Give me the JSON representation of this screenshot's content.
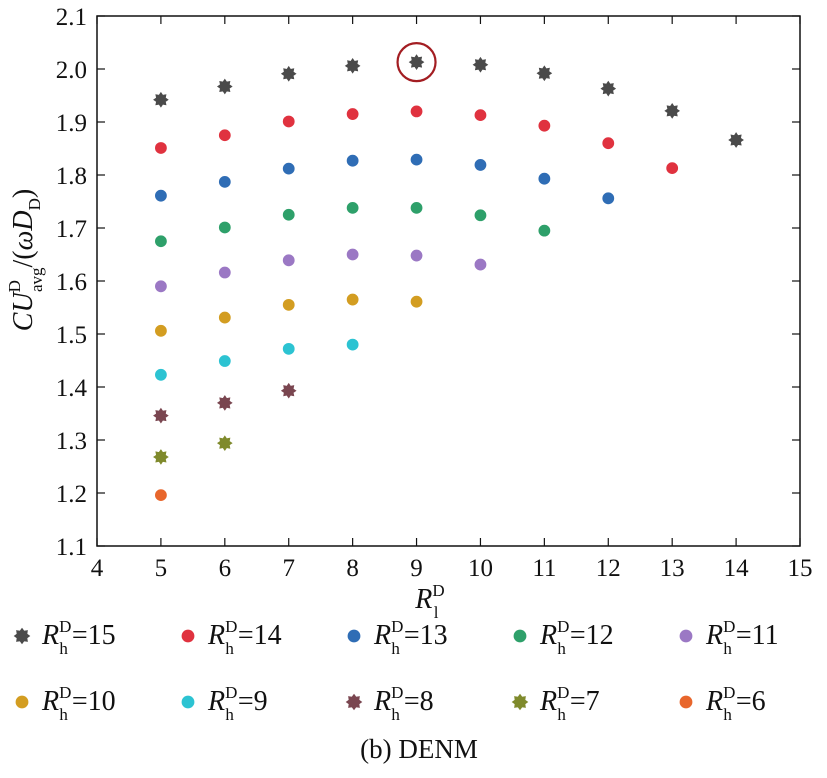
{
  "chart_data": {
    "type": "scatter",
    "title": "",
    "caption": "(b) DENM",
    "xlabel": {
      "symbol": "R",
      "sup": "D",
      "sub": "l"
    },
    "ylabel": {
      "prefix": "CU",
      "sup": "D",
      "sub": "avg",
      "suffix_open": "/(",
      "omega": "ω",
      "d": "D",
      "d_sub": "D",
      "suffix_close": ")"
    },
    "xlim": [
      4,
      15
    ],
    "ylim": [
      1.1,
      2.1
    ],
    "xticks": [
      "4",
      "5",
      "6",
      "7",
      "8",
      "9",
      "10",
      "11",
      "12",
      "13",
      "14",
      "15"
    ],
    "yticks": [
      "1.1",
      "1.2",
      "1.3",
      "1.4",
      "1.5",
      "1.6",
      "1.7",
      "1.8",
      "1.9",
      "2.0",
      "2.1"
    ],
    "grid": false,
    "highlight": {
      "x": 9,
      "y": 2.013,
      "color": "#a31d22"
    },
    "series": [
      {
        "name": "=15",
        "rh": "15",
        "color": "#4a4a4a",
        "marker": "star",
        "points": [
          [
            5,
            1.942
          ],
          [
            6,
            1.967
          ],
          [
            7,
            1.991
          ],
          [
            8,
            2.006
          ],
          [
            9,
            2.013
          ],
          [
            10,
            2.008
          ],
          [
            11,
            1.992
          ],
          [
            12,
            1.963
          ],
          [
            13,
            1.921
          ],
          [
            14,
            1.866
          ]
        ]
      },
      {
        "name": "=14",
        "rh": "14",
        "color": "#e0323f",
        "marker": "circle",
        "points": [
          [
            5,
            1.851
          ],
          [
            6,
            1.875
          ],
          [
            7,
            1.901
          ],
          [
            8,
            1.915
          ],
          [
            9,
            1.92
          ],
          [
            10,
            1.913
          ],
          [
            11,
            1.893
          ],
          [
            12,
            1.86
          ],
          [
            13,
            1.813
          ]
        ]
      },
      {
        "name": "=13",
        "rh": "13",
        "color": "#2f6db5",
        "marker": "circle",
        "points": [
          [
            5,
            1.761
          ],
          [
            6,
            1.787
          ],
          [
            7,
            1.812
          ],
          [
            8,
            1.827
          ],
          [
            9,
            1.829
          ],
          [
            10,
            1.819
          ],
          [
            11,
            1.793
          ],
          [
            12,
            1.756
          ]
        ]
      },
      {
        "name": "=12",
        "rh": "12",
        "color": "#2ea06a",
        "marker": "circle",
        "points": [
          [
            5,
            1.675
          ],
          [
            6,
            1.701
          ],
          [
            7,
            1.725
          ],
          [
            8,
            1.738
          ],
          [
            9,
            1.738
          ],
          [
            10,
            1.724
          ],
          [
            11,
            1.695
          ]
        ]
      },
      {
        "name": "=11",
        "rh": "11",
        "color": "#9b78c4",
        "marker": "circle",
        "points": [
          [
            5,
            1.59
          ],
          [
            6,
            1.616
          ],
          [
            7,
            1.639
          ],
          [
            8,
            1.65
          ],
          [
            9,
            1.648
          ],
          [
            10,
            1.631
          ]
        ]
      },
      {
        "name": "=10",
        "rh": "10",
        "color": "#d39d21",
        "marker": "circle",
        "points": [
          [
            5,
            1.506
          ],
          [
            6,
            1.531
          ],
          [
            7,
            1.555
          ],
          [
            8,
            1.565
          ],
          [
            9,
            1.561
          ]
        ]
      },
      {
        "name": "=9",
        "rh": "9",
        "color": "#2cc3d2",
        "marker": "circle",
        "points": [
          [
            5,
            1.423
          ],
          [
            6,
            1.449
          ],
          [
            7,
            1.472
          ],
          [
            8,
            1.48
          ]
        ]
      },
      {
        "name": "=8",
        "rh": "8",
        "color": "#7a4650",
        "marker": "star",
        "points": [
          [
            5,
            1.346
          ],
          [
            6,
            1.37
          ],
          [
            7,
            1.393
          ]
        ]
      },
      {
        "name": "=7",
        "rh": "7",
        "color": "#7f8a2c",
        "marker": "star",
        "points": [
          [
            5,
            1.268
          ],
          [
            6,
            1.294
          ]
        ]
      },
      {
        "name": "=6",
        "rh": "6",
        "color": "#e8662c",
        "marker": "circle",
        "points": [
          [
            5,
            1.196
          ]
        ]
      }
    ],
    "legend": {
      "placement": "bottom",
      "symbol": "R",
      "sup": "D",
      "sub": "h"
    }
  }
}
